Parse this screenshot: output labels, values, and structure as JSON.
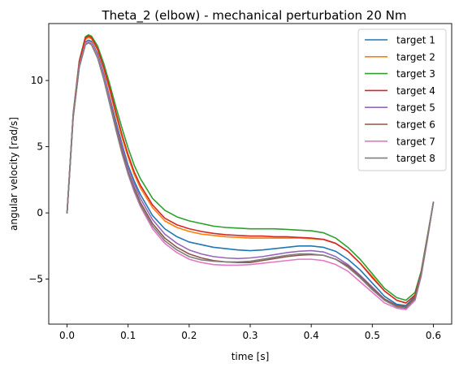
{
  "chart_data": {
    "type": "line",
    "title": "Theta_2 (elbow) - mechanical perturbation 20 Nm",
    "xlabel": "time [s]",
    "ylabel": "angular velocity [rad/s]",
    "xlim": [
      -0.03,
      0.63
    ],
    "ylim": [
      -8.4,
      14.3
    ],
    "xticks": [
      0.0,
      0.1,
      0.2,
      0.3,
      0.4,
      0.5,
      0.6
    ],
    "xtick_labels": [
      "0.0",
      "0.1",
      "0.2",
      "0.3",
      "0.4",
      "0.5",
      "0.6"
    ],
    "yticks": [
      -5,
      0,
      5,
      10
    ],
    "ytick_labels": [
      "−5",
      "0",
      "5",
      "10"
    ],
    "grid": false,
    "legend_position": "top-right",
    "x": [
      0.0,
      0.01,
      0.02,
      0.03,
      0.035,
      0.04,
      0.05,
      0.06,
      0.07,
      0.08,
      0.09,
      0.1,
      0.11,
      0.12,
      0.14,
      0.16,
      0.18,
      0.2,
      0.22,
      0.24,
      0.26,
      0.28,
      0.3,
      0.32,
      0.34,
      0.36,
      0.38,
      0.4,
      0.42,
      0.44,
      0.46,
      0.48,
      0.5,
      0.52,
      0.54,
      0.555,
      0.57,
      0.58,
      0.59,
      0.6
    ],
    "series": [
      {
        "name": "target 1",
        "color": "#1f77b4",
        "values": [
          0.0,
          7.3,
          11.2,
          12.9,
          13.05,
          12.95,
          12.0,
          10.5,
          8.7,
          6.9,
          5.2,
          3.6,
          2.4,
          1.4,
          -0.2,
          -1.2,
          -1.8,
          -2.2,
          -2.4,
          -2.6,
          -2.7,
          -2.8,
          -2.85,
          -2.8,
          -2.7,
          -2.6,
          -2.5,
          -2.5,
          -2.6,
          -2.9,
          -3.5,
          -4.3,
          -5.3,
          -6.3,
          -6.9,
          -7.0,
          -6.3,
          -4.6,
          -2.0,
          0.8
        ]
      },
      {
        "name": "target 2",
        "color": "#ff7f0e",
        "values": [
          0.0,
          7.4,
          11.3,
          13.1,
          13.25,
          13.15,
          12.3,
          10.9,
          9.2,
          7.4,
          5.7,
          4.2,
          2.9,
          1.9,
          0.4,
          -0.6,
          -1.1,
          -1.4,
          -1.6,
          -1.7,
          -1.8,
          -1.85,
          -1.9,
          -1.9,
          -1.9,
          -1.9,
          -1.9,
          -1.95,
          -2.0,
          -2.3,
          -2.9,
          -3.8,
          -4.8,
          -5.9,
          -6.6,
          -6.8,
          -6.2,
          -4.5,
          -1.9,
          0.8
        ]
      },
      {
        "name": "target 3",
        "color": "#2ca02c",
        "values": [
          0.0,
          7.5,
          11.5,
          13.3,
          13.45,
          13.35,
          12.6,
          11.3,
          9.7,
          8.0,
          6.4,
          4.9,
          3.6,
          2.6,
          1.1,
          0.2,
          -0.3,
          -0.6,
          -0.8,
          -1.0,
          -1.1,
          -1.15,
          -1.2,
          -1.2,
          -1.2,
          -1.25,
          -1.3,
          -1.35,
          -1.5,
          -1.9,
          -2.6,
          -3.5,
          -4.6,
          -5.7,
          -6.4,
          -6.6,
          -6.0,
          -4.4,
          -1.8,
          0.8
        ]
      },
      {
        "name": "target 4",
        "color": "#d62728",
        "values": [
          0.0,
          7.4,
          11.4,
          13.2,
          13.35,
          13.25,
          12.4,
          11.0,
          9.4,
          7.6,
          5.9,
          4.4,
          3.1,
          2.1,
          0.6,
          -0.4,
          -0.9,
          -1.2,
          -1.4,
          -1.55,
          -1.65,
          -1.7,
          -1.75,
          -1.75,
          -1.8,
          -1.8,
          -1.85,
          -1.9,
          -2.0,
          -2.3,
          -2.9,
          -3.8,
          -4.9,
          -5.9,
          -6.6,
          -6.8,
          -6.2,
          -4.5,
          -1.9,
          0.8
        ]
      },
      {
        "name": "target 5",
        "color": "#9467bd",
        "values": [
          0.0,
          7.3,
          11.1,
          12.8,
          12.95,
          12.85,
          11.9,
          10.4,
          8.6,
          6.7,
          5.0,
          3.4,
          2.2,
          1.1,
          -0.5,
          -1.6,
          -2.3,
          -2.8,
          -3.1,
          -3.3,
          -3.4,
          -3.45,
          -3.4,
          -3.3,
          -3.15,
          -3.0,
          -2.9,
          -2.85,
          -2.95,
          -3.3,
          -3.9,
          -4.7,
          -5.6,
          -6.5,
          -7.0,
          -7.1,
          -6.4,
          -4.6,
          -2.0,
          0.8
        ]
      },
      {
        "name": "target 6",
        "color": "#8c564b",
        "values": [
          0.0,
          7.2,
          11.0,
          12.7,
          12.85,
          12.75,
          11.8,
          10.2,
          8.4,
          6.5,
          4.7,
          3.1,
          1.9,
          0.8,
          -0.8,
          -1.9,
          -2.6,
          -3.1,
          -3.4,
          -3.6,
          -3.7,
          -3.75,
          -3.75,
          -3.6,
          -3.45,
          -3.3,
          -3.2,
          -3.15,
          -3.2,
          -3.5,
          -4.0,
          -4.8,
          -5.7,
          -6.5,
          -7.0,
          -7.1,
          -6.4,
          -4.6,
          -2.0,
          0.8
        ]
      },
      {
        "name": "target 7",
        "color": "#e377c2",
        "values": [
          0.0,
          7.3,
          11.1,
          12.8,
          12.95,
          12.85,
          11.8,
          10.2,
          8.3,
          6.3,
          4.5,
          2.9,
          1.6,
          0.5,
          -1.2,
          -2.3,
          -3.0,
          -3.5,
          -3.75,
          -3.9,
          -3.95,
          -3.95,
          -3.9,
          -3.8,
          -3.7,
          -3.6,
          -3.5,
          -3.5,
          -3.6,
          -3.9,
          -4.4,
          -5.2,
          -6.0,
          -6.8,
          -7.2,
          -7.3,
          -6.6,
          -4.8,
          -2.1,
          0.8
        ]
      },
      {
        "name": "target 8",
        "color": "#7f7f7f",
        "values": [
          0.0,
          7.2,
          11.0,
          12.7,
          12.85,
          12.7,
          11.7,
          10.1,
          8.2,
          6.3,
          4.5,
          3.0,
          1.7,
          0.6,
          -1.0,
          -2.1,
          -2.8,
          -3.3,
          -3.55,
          -3.65,
          -3.7,
          -3.7,
          -3.65,
          -3.5,
          -3.35,
          -3.2,
          -3.1,
          -3.1,
          -3.2,
          -3.5,
          -4.1,
          -4.9,
          -5.8,
          -6.6,
          -7.1,
          -7.2,
          -6.5,
          -4.7,
          -2.0,
          0.8
        ]
      }
    ]
  }
}
